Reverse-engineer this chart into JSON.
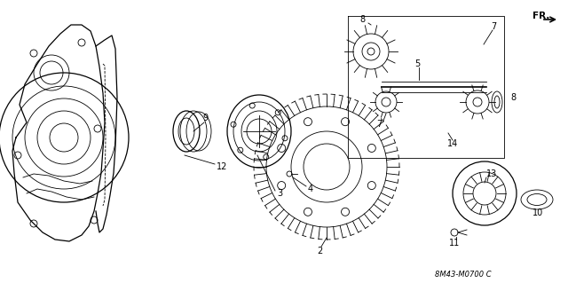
{
  "bg_color": "#ffffff",
  "line_color": "#000000",
  "catalog_id": "8M43-M0700 C",
  "figsize": [
    6.4,
    3.19
  ],
  "dpi": 100
}
